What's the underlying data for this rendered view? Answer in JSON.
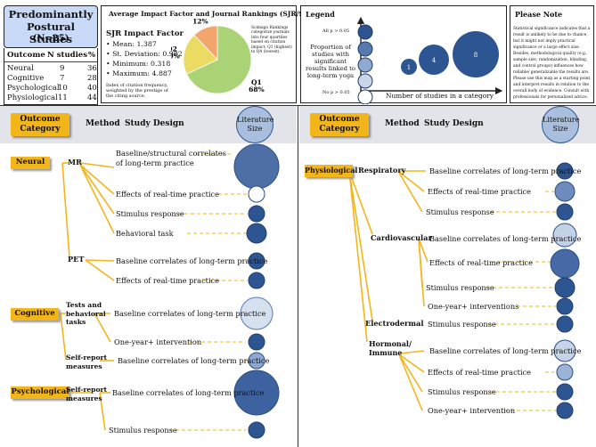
{
  "summary": {
    "title": "Predominantly Postural Studies",
    "n_label": "(N=25)",
    "headers": [
      "Outcome",
      "N studies",
      "%"
    ],
    "rows": [
      [
        "Neural",
        "9",
        "36"
      ],
      [
        "Cognitive",
        "7",
        "28"
      ],
      [
        "Psychological",
        "10",
        "40"
      ],
      [
        "Physiological",
        "11",
        "44"
      ]
    ]
  },
  "impact": {
    "title": "Average Impact Factor and Journal Rankings  (SJR/Scimago)",
    "sjr_title": "SJR Impact Factor",
    "stats": [
      "Mean: 1.387",
      "St. Deviation: 0.982",
      "Minimum: 0.318",
      "Maximum: 4.887"
    ],
    "note": "Index of citation frequency, weighted by the prestige of the citing source.",
    "ranking_note": "Scimago Rankings categorize journals into four quartiles based on citation impact: Q1 (highest) to Q4 (lowest).",
    "colors": {
      "q1": "#a9d375",
      "q2": "#ecdb63",
      "q3": "#f2a56d"
    }
  },
  "chart_data": {
    "type": "pie",
    "categories": [
      "Q1",
      "Q2",
      "Q3"
    ],
    "values": [
      68,
      20,
      12
    ],
    "labels": [
      "Q1\n68%",
      "Q2\n20%",
      "Q3\n12%"
    ]
  },
  "legend": {
    "title": "Legend",
    "p_high": "All p > 0.05",
    "p_low": "No p > 0.05",
    "proportion_text": [
      "Proportion of",
      "studies with",
      "significant",
      "results linked to",
      "long-term yoga"
    ],
    "size_numbers": [
      "1",
      "4",
      "8"
    ],
    "size_caption": "Number of studies in a category"
  },
  "note": {
    "title": "Please Note",
    "lines": [
      "Statistical significance indicates that a",
      "result is unlikely to be due to chance,",
      "but it might not imply practical",
      "significance or a large effect size.",
      "Besides, methodological quality (e.g.,",
      "sample size, randomization, blinding,",
      "and control groups) influences how",
      "reliable/ generalizable the results are.",
      "Please use this map as a starting point,",
      "and interpret results in relation to the",
      "overall body of evidence. Consult with",
      "professionals for personalized advice."
    ]
  },
  "headers": {
    "category": [
      "Outcome",
      "Category"
    ],
    "method": "Method",
    "design": "Study Design",
    "size": [
      "Literature",
      "Size"
    ]
  },
  "left": {
    "neural": "Neural",
    "mr": "MR",
    "mr_items": [
      "Baseline/structural correlates",
      "of long-term practice",
      "Effects of real-time practice",
      "Stimulus response",
      "Behavioral task"
    ],
    "pet": "PET",
    "pet_items": [
      "Baseline correlates of long-term practice",
      "Effects of real-time practice"
    ],
    "cognitive": "Cognitive",
    "tests": [
      "Tests and",
      "behavioral",
      "tasks"
    ],
    "tests_items": [
      "Baseline correlates of long-term practice",
      "One-year+ intervention"
    ],
    "selfreport": [
      "Self-report",
      "measures"
    ],
    "selfreport_items": [
      "Baseline correlates of long-term practice"
    ],
    "psychological": "Psychological",
    "psy_method": [
      "Self-report",
      "measures"
    ],
    "psy_items": [
      "Baseline correlates of long-term practice",
      "Stimulus response"
    ]
  },
  "right": {
    "physiological": "Physiological",
    "respiratory": "Respiratory",
    "respiratory_items": [
      "Baseline correlates of long-term practice",
      "Effects of real-time practice",
      "Stimulus response"
    ],
    "cardio": "Cardiovascular",
    "cardio_items": [
      "Baseline correlates of long-term practice",
      "Effects of real-time practice",
      "Stimulus response",
      "One-year+ interventions"
    ],
    "electro": "Electrodermal",
    "electro_items": [
      "Stimulus response"
    ],
    "hormonal": [
      "Hormonal/",
      "Immune"
    ],
    "hormonal_items": [
      "Baseline correlates of long-term practice",
      "Effects of real-time practice",
      "Stimulus response",
      "One-year+ intervention"
    ]
  }
}
